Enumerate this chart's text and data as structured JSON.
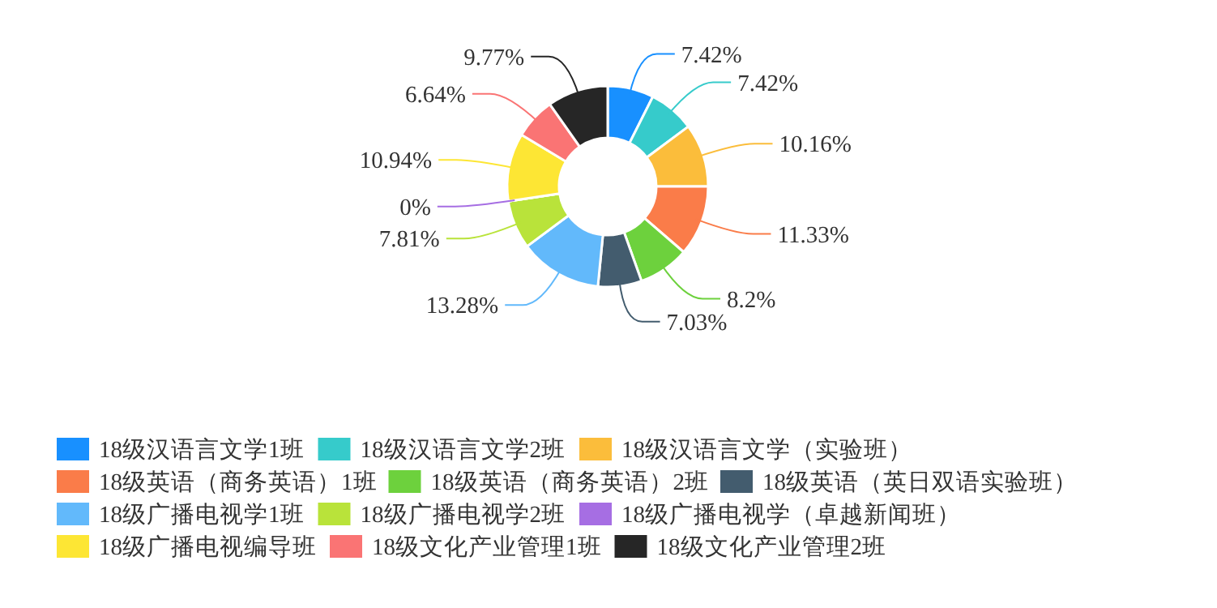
{
  "chart_data": {
    "type": "donut",
    "categories": [
      "18级汉语言文学1班",
      "18级汉语言文学2班",
      "18级汉语言文学（实验班）",
      "18级英语（商务英语）1班",
      "18级英语（商务英语）2班",
      "18级英语（英日双语实验班）",
      "18级广播电视学1班",
      "18级广播电视学2班",
      "18级广播电视学（卓越新闻班）",
      "18级广播电视编导班",
      "18级文化产业管理1班",
      "18级文化产业管理2班"
    ],
    "values": [
      7.42,
      7.42,
      10.16,
      11.33,
      8.2,
      7.03,
      13.28,
      7.81,
      0,
      10.94,
      6.64,
      9.77
    ],
    "value_labels": [
      "7.42%",
      "7.42%",
      "10.16%",
      "11.33%",
      "8.2%",
      "7.03%",
      "13.28%",
      "7.81%",
      "0%",
      "10.94%",
      "6.64%",
      "9.77%"
    ],
    "colors": [
      "#1890ff",
      "#36cbcb",
      "#fbbd3b",
      "#fa7c49",
      "#6dd13d",
      "#435c6e",
      "#62b9fb",
      "#b9e33a",
      "#a66ee3",
      "#fde634",
      "#fa7474",
      "#262626"
    ],
    "legend": "bottom"
  }
}
